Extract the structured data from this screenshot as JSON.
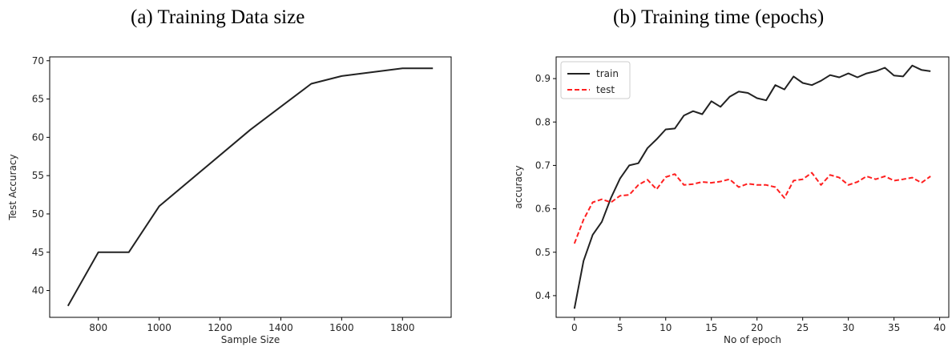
{
  "chart_data": [
    {
      "type": "line",
      "title": "(a) Training Data size",
      "xlabel": "Sample Size",
      "ylabel": "Test Accuracy",
      "xlim": [
        640,
        1960
      ],
      "ylim": [
        36.5,
        70.5
      ],
      "xticks": [
        800,
        1000,
        1200,
        1400,
        1600,
        1800
      ],
      "yticks": [
        40,
        45,
        50,
        55,
        60,
        65,
        70
      ],
      "grid": false,
      "series": [
        {
          "color": "#222222",
          "style": "solid",
          "x": [
            700,
            800,
            900,
            1000,
            1300,
            1500,
            1600,
            1800,
            1900
          ],
          "y": [
            38,
            45,
            45,
            51,
            61,
            67,
            68,
            69,
            69
          ]
        }
      ]
    },
    {
      "type": "line",
      "title": "(b) Training time (epochs)",
      "xlabel": "No of epoch",
      "ylabel": "accuracy",
      "xlim": [
        -2,
        41
      ],
      "ylim": [
        0.35,
        0.95
      ],
      "xticks": [
        0,
        5,
        10,
        15,
        20,
        25,
        30,
        35,
        40
      ],
      "yticks": [
        0.4,
        0.5,
        0.6,
        0.7,
        0.8,
        0.9
      ],
      "grid": false,
      "legend": "top-left",
      "series": [
        {
          "name": "train",
          "color": "#222222",
          "style": "solid",
          "x": [
            0,
            1,
            2,
            3,
            4,
            5,
            6,
            7,
            8,
            9,
            10,
            11,
            12,
            13,
            14,
            15,
            16,
            17,
            18,
            19,
            20,
            21,
            22,
            23,
            24,
            25,
            26,
            27,
            28,
            29,
            30,
            31,
            32,
            33,
            34,
            35,
            36,
            37,
            38,
            39
          ],
          "y": [
            0.37,
            0.48,
            0.54,
            0.57,
            0.625,
            0.67,
            0.7,
            0.705,
            0.74,
            0.76,
            0.783,
            0.785,
            0.815,
            0.825,
            0.818,
            0.848,
            0.835,
            0.858,
            0.87,
            0.867,
            0.855,
            0.85,
            0.885,
            0.875,
            0.905,
            0.89,
            0.885,
            0.895,
            0.908,
            0.903,
            0.912,
            0.903,
            0.912,
            0.917,
            0.925,
            0.907,
            0.905,
            0.93,
            0.92,
            0.917
          ]
        },
        {
          "name": "test",
          "color": "#ff2020",
          "style": "dashed",
          "x": [
            0,
            1,
            2,
            3,
            4,
            5,
            6,
            7,
            8,
            9,
            10,
            11,
            12,
            13,
            14,
            15,
            16,
            17,
            18,
            19,
            20,
            21,
            22,
            23,
            24,
            25,
            26,
            27,
            28,
            29,
            30,
            31,
            32,
            33,
            34,
            35,
            36,
            37,
            38,
            39
          ],
          "y": [
            0.52,
            0.575,
            0.615,
            0.622,
            0.615,
            0.63,
            0.632,
            0.655,
            0.667,
            0.645,
            0.673,
            0.68,
            0.655,
            0.657,
            0.662,
            0.66,
            0.663,
            0.668,
            0.65,
            0.658,
            0.655,
            0.655,
            0.65,
            0.625,
            0.665,
            0.668,
            0.683,
            0.655,
            0.678,
            0.672,
            0.655,
            0.662,
            0.675,
            0.668,
            0.675,
            0.665,
            0.668,
            0.672,
            0.66,
            0.675
          ]
        }
      ]
    }
  ]
}
